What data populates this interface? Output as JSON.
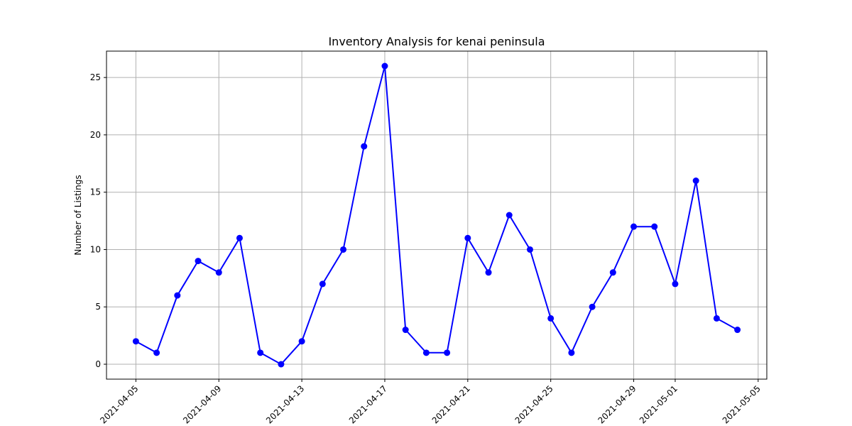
{
  "chart_data": {
    "type": "line",
    "title": "Inventory Analysis for kenai peninsula",
    "xlabel": "",
    "ylabel": "Number of Listings",
    "grid": true,
    "x_tick_labels": [
      "2021-04-05",
      "2021-04-09",
      "2021-04-13",
      "2021-04-17",
      "2021-04-21",
      "2021-04-25",
      "2021-04-29",
      "2021-05-01",
      "2021-05-05"
    ],
    "y_tick_labels": [
      "0",
      "5",
      "10",
      "15",
      "20",
      "25"
    ],
    "x_range": [
      "2021-04-03T14:00",
      "2021-05-05T10:00"
    ],
    "ylim": [
      -1.3,
      27.3
    ],
    "color": "#0000ff",
    "series": [
      {
        "x": [
          "2021-04-05",
          "2021-04-06",
          "2021-04-07",
          "2021-04-08",
          "2021-04-09",
          "2021-04-10",
          "2021-04-11",
          "2021-04-12",
          "2021-04-13",
          "2021-04-14",
          "2021-04-15",
          "2021-04-16",
          "2021-04-17",
          "2021-04-18",
          "2021-04-19",
          "2021-04-20",
          "2021-04-21",
          "2021-04-22",
          "2021-04-23",
          "2021-04-24",
          "2021-04-25",
          "2021-04-26",
          "2021-04-27",
          "2021-04-28",
          "2021-04-29",
          "2021-04-30",
          "2021-05-01",
          "2021-05-02",
          "2021-05-03",
          "2021-05-04"
        ],
        "values": [
          2,
          1,
          6,
          9,
          8,
          11,
          1,
          0,
          2,
          7,
          10,
          19,
          26,
          3,
          1,
          1,
          11,
          8,
          13,
          10,
          4,
          1,
          5,
          8,
          12,
          12,
          7,
          16,
          4,
          3
        ]
      }
    ]
  }
}
